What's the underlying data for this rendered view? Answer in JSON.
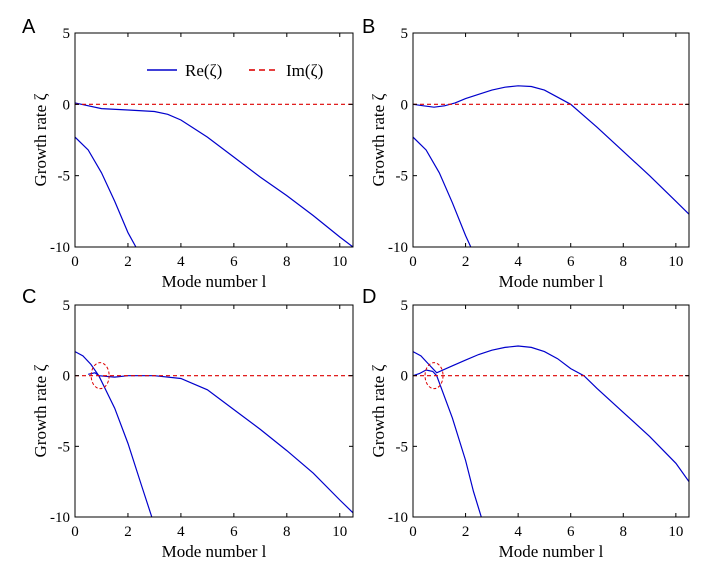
{
  "legend": {
    "re_label": "Re(ζ)",
    "im_label": "Im(ζ)",
    "re_color": "#0000cc",
    "im_color": "#dd0000",
    "placement": "top-right of panel A"
  },
  "chart_data": [
    {
      "type": "line",
      "panel_label": "A",
      "xlabel": "Mode number l",
      "ylabel": "Growth rate ζ",
      "xlim": [
        0,
        10.5
      ],
      "ylim": [
        -10,
        5
      ],
      "xticks": [
        0,
        2,
        4,
        6,
        8,
        10
      ],
      "yticks": [
        5,
        0,
        -5,
        -10
      ],
      "grid": false,
      "legend": true,
      "series": [
        {
          "kind": "re",
          "x": [
            0,
            1,
            2,
            3,
            3.5,
            4,
            5,
            6,
            7,
            8,
            9,
            10,
            10.5
          ],
          "y": [
            0.1,
            -0.3,
            -0.4,
            -0.5,
            -0.7,
            -1.1,
            -2.3,
            -3.7,
            -5.1,
            -6.4,
            -7.8,
            -9.3,
            -10
          ]
        },
        {
          "kind": "re",
          "x": [
            0,
            0.5,
            1,
            1.5,
            2,
            2.3
          ],
          "y": [
            -2.3,
            -3.2,
            -4.8,
            -6.8,
            -9,
            -10
          ]
        },
        {
          "kind": "im",
          "x": [
            0,
            10.5
          ],
          "y": [
            0,
            0
          ]
        }
      ]
    },
    {
      "type": "line",
      "panel_label": "B",
      "xlabel": "Mode number l",
      "ylabel": "Growth rate ζ",
      "xlim": [
        0,
        10.5
      ],
      "ylim": [
        -10,
        5
      ],
      "xticks": [
        0,
        2,
        4,
        6,
        8,
        10
      ],
      "yticks": [
        5,
        0,
        -5,
        -10
      ],
      "grid": false,
      "legend": false,
      "series": [
        {
          "kind": "re",
          "x": [
            0,
            0.4,
            0.8,
            1.2,
            1.6,
            2,
            2.5,
            3,
            3.5,
            4,
            4.5,
            5,
            5.5,
            6,
            7,
            8,
            9,
            10,
            10.5
          ],
          "y": [
            0,
            -0.1,
            -0.2,
            -0.1,
            0.1,
            0.4,
            0.7,
            1,
            1.2,
            1.3,
            1.25,
            1,
            0.5,
            0,
            -1.6,
            -3.3,
            -5,
            -6.8,
            -7.7
          ]
        },
        {
          "kind": "re",
          "x": [
            0,
            0.5,
            1,
            1.5,
            2,
            2.2
          ],
          "y": [
            -2.3,
            -3.2,
            -4.8,
            -6.9,
            -9.2,
            -10
          ]
        },
        {
          "kind": "im",
          "x": [
            0,
            10.5
          ],
          "y": [
            0,
            0
          ]
        }
      ]
    },
    {
      "type": "line",
      "panel_label": "C",
      "xlabel": "Mode number l",
      "ylabel": "Growth rate ζ",
      "xlim": [
        0,
        10.5
      ],
      "ylim": [
        -10,
        5
      ],
      "xticks": [
        0,
        2,
        4,
        6,
        8,
        10
      ],
      "yticks": [
        5,
        0,
        -5,
        -10
      ],
      "grid": false,
      "legend": false,
      "series": [
        {
          "kind": "re",
          "x": [
            0,
            0.3,
            0.6,
            0.9,
            1.5,
            2,
            3,
            4,
            5,
            6,
            7,
            8,
            9,
            10,
            10.5
          ],
          "y": [
            1.7,
            1.4,
            0.8,
            0,
            -0.1,
            0,
            0,
            -0.2,
            -1,
            -2.4,
            -3.8,
            -5.3,
            -6.9,
            -8.8,
            -9.7
          ]
        },
        {
          "kind": "re",
          "x": [
            0.9,
            1.5,
            2,
            2.5,
            2.9
          ],
          "y": [
            0,
            -2.3,
            -4.8,
            -7.7,
            -10
          ]
        },
        {
          "kind": "re",
          "x": [
            0.5,
            0.75,
            0.9
          ],
          "y": [
            0.1,
            0.2,
            0
          ]
        },
        {
          "kind": "im",
          "x": [
            0,
            10.5
          ],
          "y": [
            0,
            0
          ]
        }
      ],
      "annotation": {
        "type": "dashed-ellipse",
        "center_x": 0.95,
        "center_y": 0,
        "note": "circled coalescence point"
      }
    },
    {
      "type": "line",
      "panel_label": "D",
      "xlabel": "Mode number l",
      "ylabel": "Growth rate ζ",
      "xlim": [
        0,
        10.5
      ],
      "ylim": [
        -10,
        5
      ],
      "xticks": [
        0,
        2,
        4,
        6,
        8,
        10
      ],
      "yticks": [
        5,
        0,
        -5,
        -10
      ],
      "grid": false,
      "legend": false,
      "series": [
        {
          "kind": "re",
          "x": [
            0,
            0.3,
            0.6,
            0.9,
            1.5,
            2,
            2.5,
            3,
            3.5,
            4,
            4.5,
            5,
            5.5,
            6,
            6.5,
            7,
            8,
            9,
            10,
            10.5
          ],
          "y": [
            1.7,
            1.4,
            0.8,
            0.2,
            0.7,
            1.1,
            1.5,
            1.8,
            2,
            2.1,
            2,
            1.7,
            1.2,
            0.5,
            0,
            -0.9,
            -2.6,
            -4.3,
            -6.2,
            -7.5
          ]
        },
        {
          "kind": "re",
          "x": [
            0.9,
            1.5,
            2,
            2.3,
            2.6
          ],
          "y": [
            0,
            -3,
            -6,
            -8.2,
            -10
          ]
        },
        {
          "kind": "re",
          "x": [
            0,
            0.25,
            0.5,
            0.75,
            0.9
          ],
          "y": [
            0,
            0.15,
            0.4,
            0.3,
            0
          ]
        },
        {
          "kind": "im",
          "x": [
            0,
            10.5
          ],
          "y": [
            0,
            0
          ]
        }
      ],
      "annotation": {
        "type": "dashed-ellipse",
        "center_x": 0.8,
        "center_y": 0,
        "note": "circled coalescence point"
      }
    }
  ]
}
